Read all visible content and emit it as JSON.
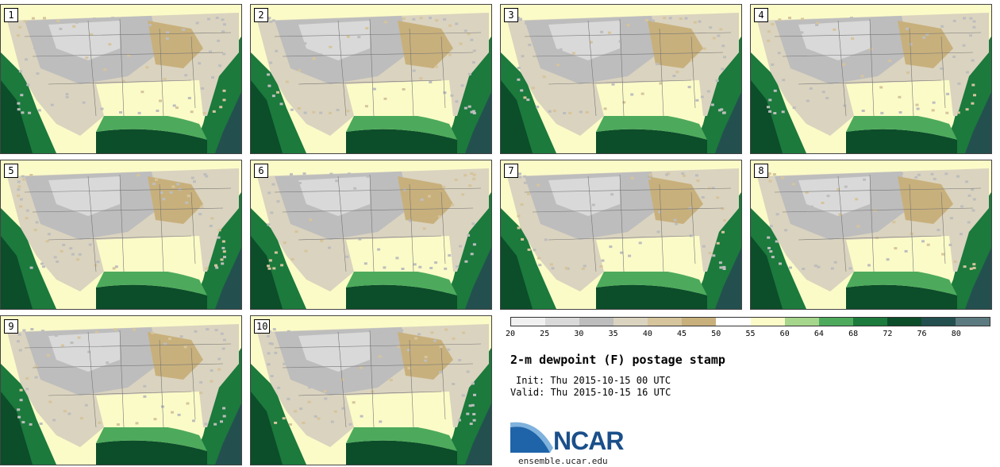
{
  "stamps": [
    {
      "label": "1"
    },
    {
      "label": "2"
    },
    {
      "label": "3"
    },
    {
      "label": "4"
    },
    {
      "label": "5"
    },
    {
      "label": "6"
    },
    {
      "label": "7"
    },
    {
      "label": "8"
    },
    {
      "label": "9"
    },
    {
      "label": "10"
    }
  ],
  "colorbar": {
    "ticks": [
      "20",
      "25",
      "30",
      "35",
      "40",
      "45",
      "50",
      "55",
      "60",
      "64",
      "68",
      "72",
      "76",
      "80"
    ],
    "colors": [
      "#f0f0f0",
      "#d9d9d9",
      "#bdbdbd",
      "#dad3bf",
      "#d6c49c",
      "#c8b07c",
      "#ffffff",
      "#fbfbc8",
      "#a6d58c",
      "#4daa5c",
      "#1b7a3c",
      "#0c4d2a",
      "#23504f",
      "#5c7b80"
    ]
  },
  "title": "2-m dewpoint (F) postage stamp",
  "init": "Init: Thu 2015-10-15 00 UTC",
  "valid": "Valid: Thu 2015-10-15 16 UTC",
  "logo": {
    "name": "NCAR",
    "url": "ensemble.ucar.edu"
  }
}
